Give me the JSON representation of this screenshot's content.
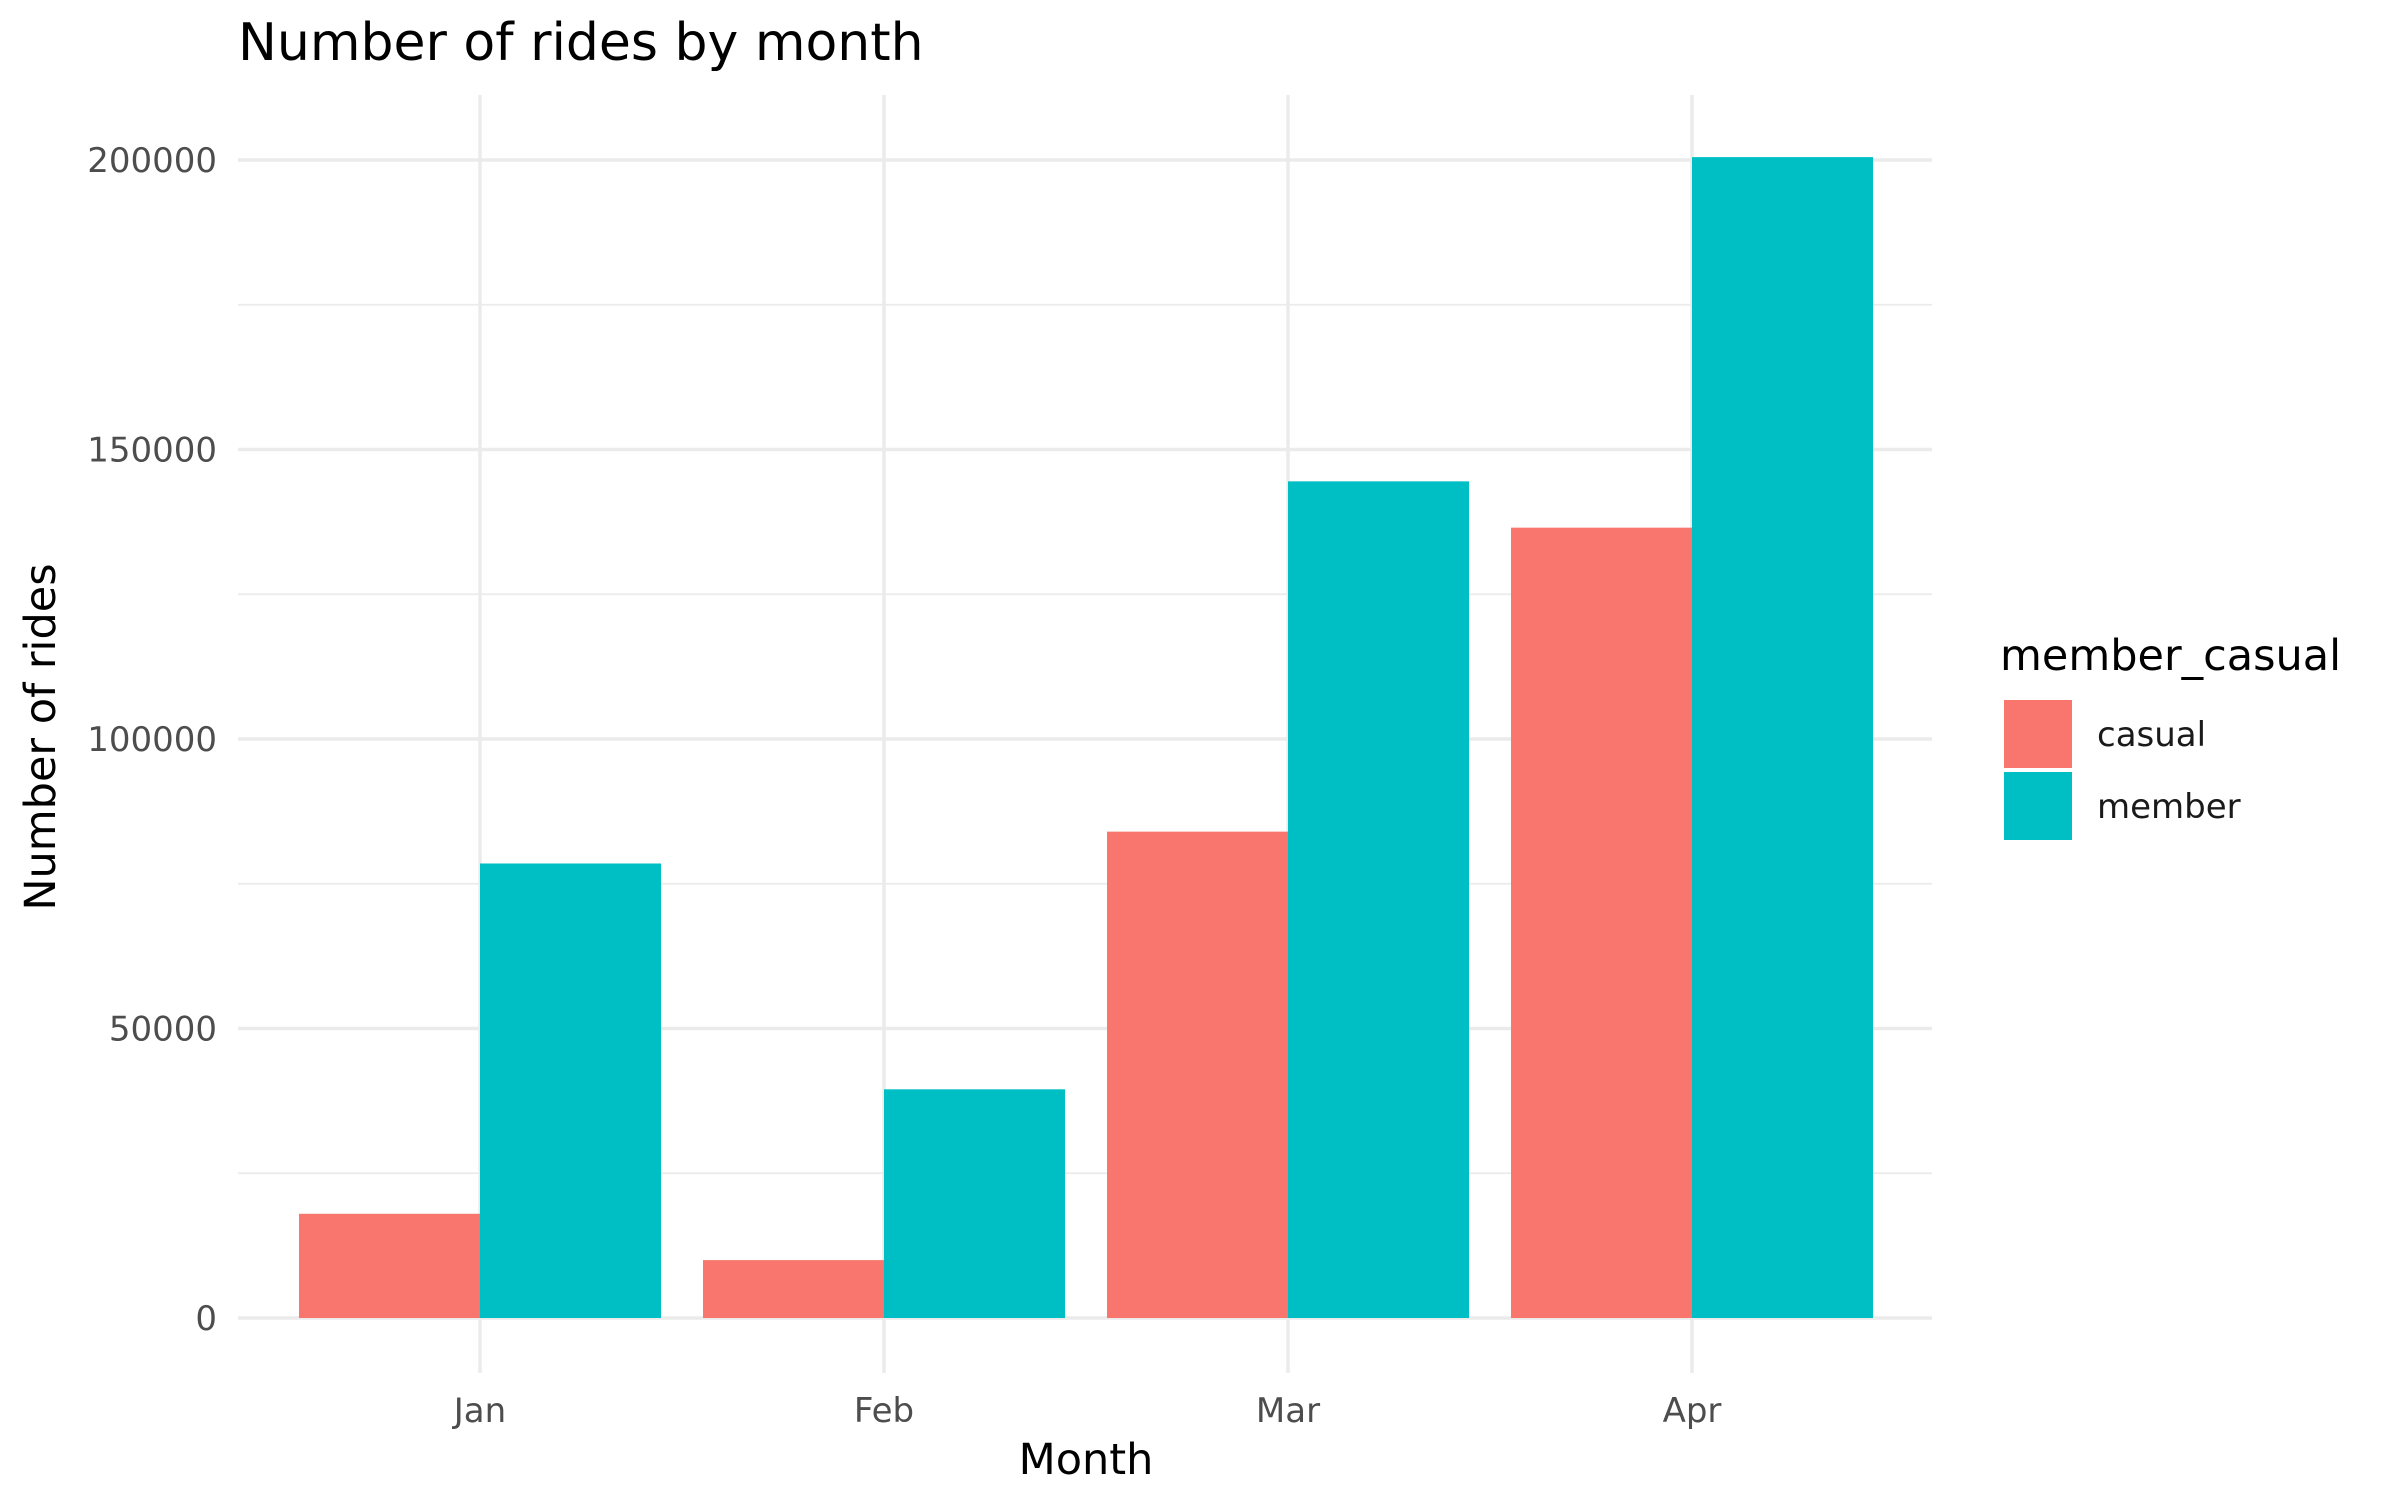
{
  "chart_data": {
    "type": "bar",
    "title": "Number of rides by month",
    "xlabel": "Month",
    "ylabel": "Number of rides",
    "categories": [
      "Jan",
      "Feb",
      "Mar",
      "Apr"
    ],
    "series": [
      {
        "name": "casual",
        "values": [
          18000,
          10000,
          84000,
          136500
        ],
        "color": "#F8766D"
      },
      {
        "name": "member",
        "values": [
          78500,
          39500,
          144500,
          200500
        ],
        "color": "#00BFC4"
      }
    ],
    "ylim": [
      0,
      200000
    ],
    "y_ticks": [
      0,
      50000,
      100000,
      150000,
      200000
    ],
    "y_tick_labels": [
      "0",
      "50000",
      "100000",
      "150000",
      "200000"
    ],
    "grid": true,
    "legend": {
      "title": "member_casual",
      "position": "right"
    }
  }
}
